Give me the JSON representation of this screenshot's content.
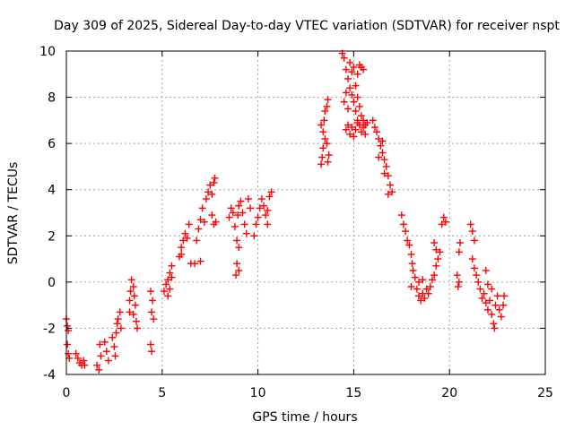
{
  "chart_data": {
    "type": "scatter",
    "title": "Day 309 of 2025, Sidereal Day-to-day VTEC variation (SDTVAR) for receiver nspt",
    "xlabel": "GPS time / hours",
    "ylabel": "SDTVAR / TECUs",
    "xlim": [
      0,
      25
    ],
    "ylim": [
      -4,
      10
    ],
    "xticks": [
      0,
      5,
      10,
      15,
      20,
      25
    ],
    "yticks": [
      -4,
      -2,
      0,
      2,
      4,
      6,
      8,
      10
    ],
    "grid": true,
    "marker_color": "#ff0000",
    "series": [
      {
        "name": "SDTVAR",
        "points": [
          [
            0.0,
            -1.6
          ],
          [
            0.05,
            -1.9
          ],
          [
            0.1,
            -2.1
          ],
          [
            0.05,
            -2.7
          ],
          [
            0.1,
            -3.1
          ],
          [
            0.15,
            -3.3
          ],
          [
            0.5,
            -3.1
          ],
          [
            0.6,
            -3.3
          ],
          [
            0.7,
            -3.5
          ],
          [
            0.8,
            -3.6
          ],
          [
            0.9,
            -3.4
          ],
          [
            0.95,
            -3.6
          ],
          [
            1.6,
            -3.6
          ],
          [
            1.7,
            -3.8
          ],
          [
            1.8,
            -3.2
          ],
          [
            1.75,
            -2.7
          ],
          [
            2.0,
            -2.6
          ],
          [
            2.1,
            -3.0
          ],
          [
            2.2,
            -3.4
          ],
          [
            2.4,
            -2.4
          ],
          [
            2.5,
            -2.8
          ],
          [
            2.55,
            -3.2
          ],
          [
            2.6,
            -2.2
          ],
          [
            2.65,
            -1.8
          ],
          [
            2.7,
            -1.6
          ],
          [
            2.8,
            -1.3
          ],
          [
            2.85,
            -2.0
          ],
          [
            3.3,
            -0.8
          ],
          [
            3.35,
            -0.4
          ],
          [
            3.4,
            0.1
          ],
          [
            3.5,
            -0.2
          ],
          [
            3.55,
            -0.6
          ],
          [
            3.6,
            -1.0
          ],
          [
            3.5,
            -1.4
          ],
          [
            3.65,
            -1.7
          ],
          [
            3.7,
            -2.0
          ],
          [
            3.3,
            -1.3
          ],
          [
            4.4,
            -0.4
          ],
          [
            4.5,
            -0.8
          ],
          [
            4.45,
            -1.3
          ],
          [
            4.55,
            -1.6
          ],
          [
            4.4,
            -2.7
          ],
          [
            4.45,
            -3.0
          ],
          [
            5.1,
            -0.4
          ],
          [
            5.2,
            -0.1
          ],
          [
            5.3,
            0.1
          ],
          [
            5.4,
            0.4
          ],
          [
            5.5,
            0.2
          ],
          [
            5.4,
            -0.3
          ],
          [
            5.3,
            -0.6
          ],
          [
            5.5,
            0.7
          ],
          [
            5.9,
            1.1
          ],
          [
            6.0,
            1.5
          ],
          [
            6.1,
            1.8
          ],
          [
            6.2,
            2.1
          ],
          [
            6.0,
            1.2
          ],
          [
            6.3,
            1.9
          ],
          [
            6.4,
            2.5
          ],
          [
            6.5,
            0.8
          ],
          [
            6.7,
            0.8
          ],
          [
            6.8,
            1.8
          ],
          [
            6.9,
            2.3
          ],
          [
            7.0,
            2.7
          ],
          [
            7.1,
            3.2
          ],
          [
            7.2,
            2.6
          ],
          [
            7.3,
            3.6
          ],
          [
            7.4,
            3.9
          ],
          [
            7.5,
            4.2
          ],
          [
            7.6,
            3.8
          ],
          [
            7.7,
            4.3
          ],
          [
            7.75,
            4.5
          ],
          [
            7.7,
            2.5
          ],
          [
            7.6,
            2.9
          ],
          [
            7.8,
            2.6
          ],
          [
            7.0,
            0.9
          ],
          [
            8.5,
            2.8
          ],
          [
            8.6,
            3.2
          ],
          [
            8.7,
            3.0
          ],
          [
            8.8,
            2.4
          ],
          [
            8.9,
            1.8
          ],
          [
            8.95,
            2.9
          ],
          [
            9.0,
            3.3
          ],
          [
            9.1,
            3.5
          ],
          [
            9.2,
            3.0
          ],
          [
            9.3,
            2.5
          ],
          [
            9.4,
            2.1
          ],
          [
            9.5,
            3.6
          ],
          [
            9.6,
            3.2
          ],
          [
            9.0,
            1.5
          ],
          [
            8.9,
            0.8
          ],
          [
            8.85,
            0.3
          ],
          [
            9.0,
            0.5
          ],
          [
            9.8,
            2.0
          ],
          [
            9.9,
            2.5
          ],
          [
            10.0,
            2.8
          ],
          [
            10.1,
            3.2
          ],
          [
            10.2,
            3.6
          ],
          [
            10.3,
            3.3
          ],
          [
            10.4,
            2.9
          ],
          [
            10.5,
            3.1
          ],
          [
            10.6,
            3.7
          ],
          [
            10.7,
            3.9
          ],
          [
            10.5,
            2.5
          ],
          [
            13.3,
            5.1
          ],
          [
            13.35,
            5.4
          ],
          [
            13.4,
            5.8
          ],
          [
            13.5,
            6.2
          ],
          [
            13.6,
            6.0
          ],
          [
            13.7,
            5.5
          ],
          [
            13.65,
            5.2
          ],
          [
            13.4,
            6.5
          ],
          [
            13.45,
            7.0
          ],
          [
            13.5,
            7.4
          ],
          [
            13.6,
            7.6
          ],
          [
            13.65,
            7.9
          ],
          [
            13.3,
            6.8
          ],
          [
            14.4,
            9.9
          ],
          [
            14.5,
            9.7
          ],
          [
            14.6,
            9.2
          ],
          [
            14.7,
            8.8
          ],
          [
            14.8,
            8.4
          ],
          [
            14.9,
            8.1
          ],
          [
            15.0,
            7.8
          ],
          [
            15.1,
            7.4
          ],
          [
            15.2,
            7.0
          ],
          [
            15.3,
            6.8
          ],
          [
            15.4,
            6.5
          ],
          [
            15.5,
            6.7
          ],
          [
            15.6,
            6.4
          ],
          [
            15.7,
            6.9
          ],
          [
            14.8,
            9.5
          ],
          [
            14.9,
            9.1
          ],
          [
            15.0,
            9.3
          ],
          [
            15.2,
            9.0
          ],
          [
            15.3,
            9.4
          ],
          [
            15.4,
            9.3
          ],
          [
            15.5,
            9.2
          ],
          [
            15.1,
            8.5
          ],
          [
            15.2,
            8.0
          ],
          [
            15.3,
            7.6
          ],
          [
            15.4,
            7.2
          ],
          [
            15.5,
            7.0
          ],
          [
            15.6,
            6.8
          ],
          [
            14.6,
            6.6
          ],
          [
            14.7,
            6.8
          ],
          [
            14.8,
            6.4
          ],
          [
            14.9,
            6.7
          ],
          [
            15.0,
            6.3
          ],
          [
            15.1,
            6.6
          ],
          [
            15.2,
            6.9
          ],
          [
            14.5,
            7.8
          ],
          [
            14.6,
            8.2
          ],
          [
            14.7,
            7.5
          ],
          [
            16.0,
            7.0
          ],
          [
            16.1,
            6.7
          ],
          [
            16.2,
            6.5
          ],
          [
            16.3,
            6.2
          ],
          [
            16.4,
            5.9
          ],
          [
            16.5,
            5.6
          ],
          [
            16.6,
            5.3
          ],
          [
            16.7,
            5.0
          ],
          [
            16.8,
            4.6
          ],
          [
            16.9,
            4.2
          ],
          [
            17.0,
            3.9
          ],
          [
            16.3,
            5.4
          ],
          [
            16.5,
            6.1
          ],
          [
            16.6,
            4.7
          ],
          [
            16.8,
            3.8
          ],
          [
            17.5,
            2.9
          ],
          [
            17.6,
            2.5
          ],
          [
            17.7,
            2.2
          ],
          [
            17.8,
            1.8
          ],
          [
            17.9,
            1.6
          ],
          [
            18.0,
            1.2
          ],
          [
            18.05,
            0.8
          ],
          [
            18.1,
            0.5
          ],
          [
            18.0,
            -0.2
          ],
          [
            18.2,
            0.2
          ],
          [
            18.3,
            -0.3
          ],
          [
            18.4,
            -0.6
          ],
          [
            18.5,
            -0.8
          ],
          [
            18.6,
            -0.5
          ],
          [
            18.7,
            -0.7
          ],
          [
            18.8,
            -0.3
          ],
          [
            18.9,
            -0.5
          ],
          [
            19.0,
            -0.2
          ],
          [
            19.1,
            0.1
          ],
          [
            19.2,
            0.3
          ],
          [
            19.3,
            0.7
          ],
          [
            19.4,
            1.0
          ],
          [
            19.5,
            1.3
          ],
          [
            18.4,
            0.0
          ],
          [
            18.6,
            0.1
          ],
          [
            19.2,
            1.7
          ],
          [
            19.3,
            1.4
          ],
          [
            19.6,
            2.5
          ],
          [
            19.7,
            2.8
          ],
          [
            19.8,
            2.6
          ],
          [
            20.4,
            0.3
          ],
          [
            20.5,
            0.0
          ],
          [
            20.45,
            -0.2
          ],
          [
            20.5,
            1.3
          ],
          [
            20.55,
            1.7
          ],
          [
            21.1,
            2.5
          ],
          [
            21.2,
            2.2
          ],
          [
            21.3,
            1.8
          ],
          [
            21.2,
            1.0
          ],
          [
            21.3,
            0.6
          ],
          [
            21.4,
            0.3
          ],
          [
            21.5,
            0.0
          ],
          [
            21.6,
            -0.3
          ],
          [
            21.7,
            -0.7
          ],
          [
            21.8,
            -0.5
          ],
          [
            21.9,
            -0.9
          ],
          [
            22.0,
            -1.2
          ],
          [
            22.1,
            -0.8
          ],
          [
            22.2,
            -1.4
          ],
          [
            22.3,
            -1.8
          ],
          [
            22.35,
            -2.0
          ],
          [
            22.4,
            -1.0
          ],
          [
            22.5,
            -0.6
          ],
          [
            22.6,
            -1.2
          ],
          [
            22.7,
            -1.5
          ],
          [
            22.8,
            -1.0
          ],
          [
            22.85,
            -0.6
          ],
          [
            21.9,
            0.5
          ],
          [
            22.0,
            -0.1
          ],
          [
            22.2,
            -0.3
          ]
        ]
      }
    ]
  }
}
